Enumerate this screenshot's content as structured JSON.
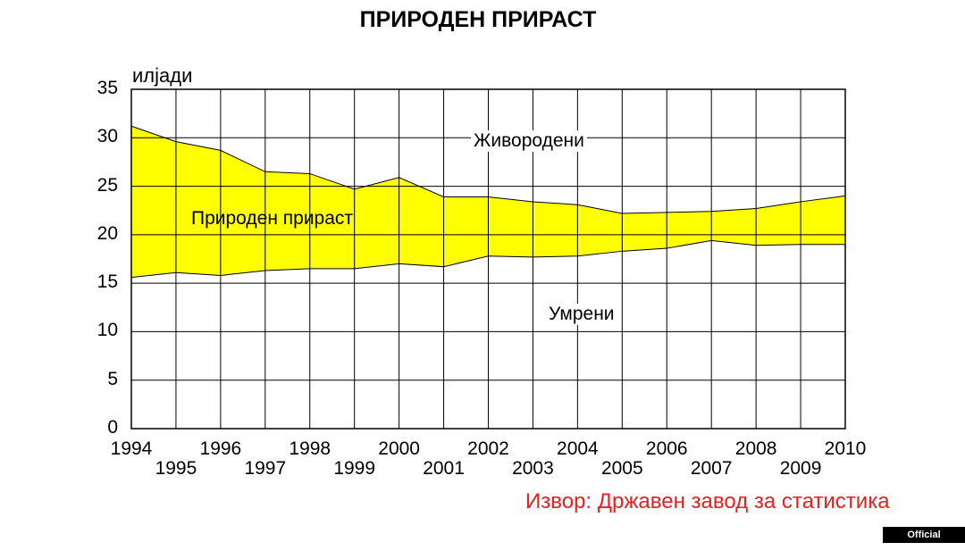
{
  "chart_data": {
    "type": "area",
    "title": "ПРИРОДЕН ПРИРАСТ",
    "ylabel": "илјади",
    "xlabel": "",
    "ylim": [
      0,
      35
    ],
    "yticks": [
      "0",
      "5",
      "10",
      "15",
      "20",
      "25",
      "30",
      "35"
    ],
    "x": [
      "1994",
      "1995",
      "1996",
      "1997",
      "1998",
      "1999",
      "2000",
      "2001",
      "2002",
      "2003",
      "2004",
      "2005",
      "2006",
      "2007",
      "2008",
      "2009",
      "2010"
    ],
    "series": [
      {
        "name": "Живородени",
        "values": [
          31.2,
          29.6,
          28.7,
          26.5,
          26.3,
          24.7,
          25.9,
          23.9,
          23.9,
          23.4,
          23.1,
          22.2,
          22.3,
          22.4,
          22.7,
          23.4,
          24.0
        ]
      },
      {
        "name": "Умрени",
        "values": [
          15.6,
          16.1,
          15.8,
          16.3,
          16.5,
          16.5,
          17.0,
          16.7,
          17.8,
          17.7,
          17.8,
          18.3,
          18.6,
          19.4,
          18.9,
          19.0,
          19.0
        ]
      }
    ],
    "annotations": {
      "births": "Живородени",
      "deaths": "Умрени",
      "natural_increase": "Природен прираст"
    },
    "grid": true
  },
  "source": "Извор: Државен завод за статистика",
  "badge": "Official publication",
  "colors": {
    "fill": "#ffff00",
    "grid": "#000000",
    "source": "#e8201f",
    "badge_bg": "#000000"
  }
}
